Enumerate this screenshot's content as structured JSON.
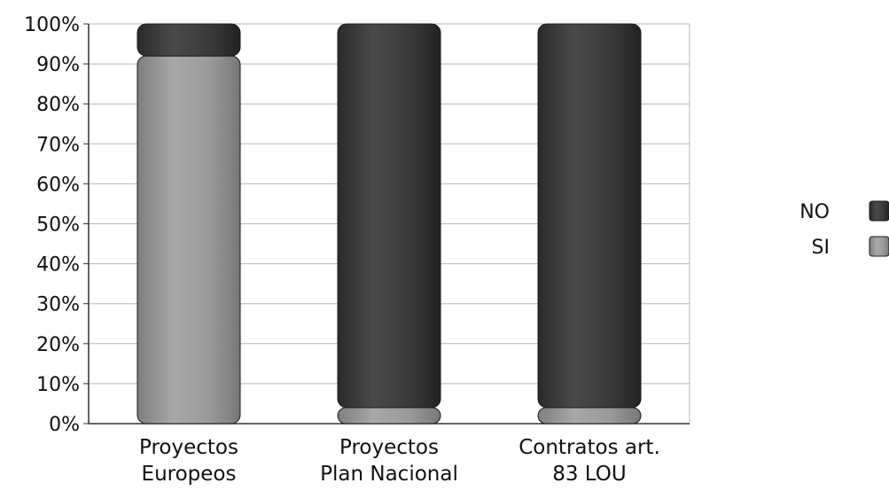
{
  "chart_data": {
    "type": "bar",
    "stacked": true,
    "categories": [
      [
        "Proyectos",
        "Europeos"
      ],
      [
        "Proyectos",
        "Plan Nacional"
      ],
      [
        "Contratos art.",
        "83 LOU"
      ]
    ],
    "series": [
      {
        "name": "SI",
        "values": [
          92,
          4,
          4
        ],
        "color": "#9a9a9a"
      },
      {
        "name": "NO",
        "values": [
          8,
          96,
          96
        ],
        "color": "#3a3a3a"
      }
    ],
    "y_ticks": [
      "0%",
      "10%",
      "20%",
      "30%",
      "40%",
      "50%",
      "60%",
      "70%",
      "80%",
      "90%",
      "100%"
    ],
    "ylim": [
      0,
      100
    ],
    "grid": true,
    "legend": {
      "position": "right",
      "order": [
        "NO",
        "SI"
      ]
    },
    "title": "",
    "xlabel": "",
    "ylabel": ""
  }
}
